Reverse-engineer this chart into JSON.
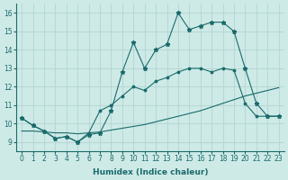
{
  "xlabel": "Humidex (Indice chaleur)",
  "bg_color": "#ceeae7",
  "grid_color": "#b8d8d5",
  "line_color": "#1a6b6b",
  "xlim": [
    -0.5,
    23.5
  ],
  "ylim": [
    8.5,
    16.5
  ],
  "xticks": [
    0,
    1,
    2,
    3,
    4,
    5,
    6,
    7,
    8,
    9,
    10,
    11,
    12,
    13,
    14,
    15,
    16,
    17,
    18,
    19,
    20,
    21,
    22,
    23
  ],
  "yticks": [
    9,
    10,
    11,
    12,
    13,
    14,
    15,
    16
  ],
  "line1_x": [
    0,
    1,
    2,
    3,
    4,
    5,
    6,
    7,
    8,
    9,
    10,
    11,
    12,
    13,
    14,
    15,
    16,
    17,
    18,
    19,
    20,
    21,
    22,
    23
  ],
  "line1_y": [
    10.3,
    9.9,
    9.6,
    9.2,
    9.3,
    9.0,
    9.4,
    9.5,
    10.7,
    12.8,
    14.4,
    13.0,
    14.0,
    14.3,
    16.0,
    15.1,
    15.3,
    15.5,
    15.5,
    15.0,
    13.0,
    11.1,
    10.4,
    10.4
  ],
  "line2_x": [
    0,
    1,
    2,
    3,
    4,
    5,
    6,
    7,
    8,
    9,
    10,
    11,
    12,
    13,
    14,
    15,
    16,
    17,
    18,
    19,
    20,
    21,
    22,
    23
  ],
  "line2_y": [
    10.3,
    9.9,
    9.6,
    9.2,
    9.3,
    9.0,
    9.5,
    10.7,
    11.0,
    11.5,
    12.0,
    11.8,
    12.3,
    12.5,
    12.8,
    13.0,
    13.0,
    12.8,
    13.0,
    12.9,
    11.1,
    10.4,
    10.4,
    10.4
  ],
  "line3_x": [
    0,
    1,
    2,
    3,
    4,
    5,
    6,
    7,
    8,
    9,
    10,
    11,
    12,
    13,
    14,
    15,
    16,
    17,
    18,
    19,
    20,
    21,
    22,
    23
  ],
  "line3_y": [
    9.6,
    9.6,
    9.55,
    9.5,
    9.5,
    9.45,
    9.5,
    9.55,
    9.65,
    9.75,
    9.85,
    9.95,
    10.1,
    10.25,
    10.4,
    10.55,
    10.7,
    10.9,
    11.1,
    11.3,
    11.5,
    11.65,
    11.8,
    11.95
  ]
}
